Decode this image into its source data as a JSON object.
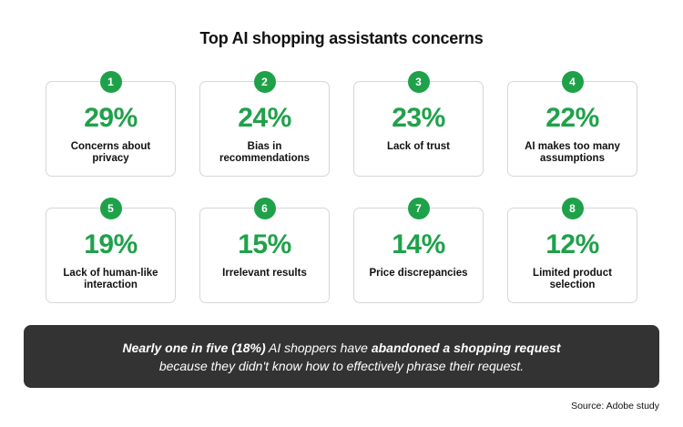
{
  "title": "Top AI shopping assistants concerns",
  "accent_color": "#1fa14a",
  "chart_data": {
    "type": "table",
    "title": "Top AI shopping assistants concerns",
    "items": [
      {
        "rank": "1",
        "value": "29%",
        "label": "Concerns about privacy"
      },
      {
        "rank": "2",
        "value": "24%",
        "label": "Bias in recommendations"
      },
      {
        "rank": "3",
        "value": "23%",
        "label": "Lack of trust"
      },
      {
        "rank": "4",
        "value": "22%",
        "label": "AI makes too many assumptions"
      },
      {
        "rank": "5",
        "value": "19%",
        "label": "Lack of human-like interaction"
      },
      {
        "rank": "6",
        "value": "15%",
        "label": "Irrelevant results"
      },
      {
        "rank": "7",
        "value": "14%",
        "label": "Price discrepancies"
      },
      {
        "rank": "8",
        "value": "12%",
        "label": "Limited product selection"
      }
    ]
  },
  "callout": {
    "part1": "Nearly one in five (18%)",
    "part2": " AI shoppers have ",
    "part3": "abandoned a shopping request",
    "part4": " because they didn't know how to effectively phrase their request."
  },
  "source": "Source: Adobe study"
}
